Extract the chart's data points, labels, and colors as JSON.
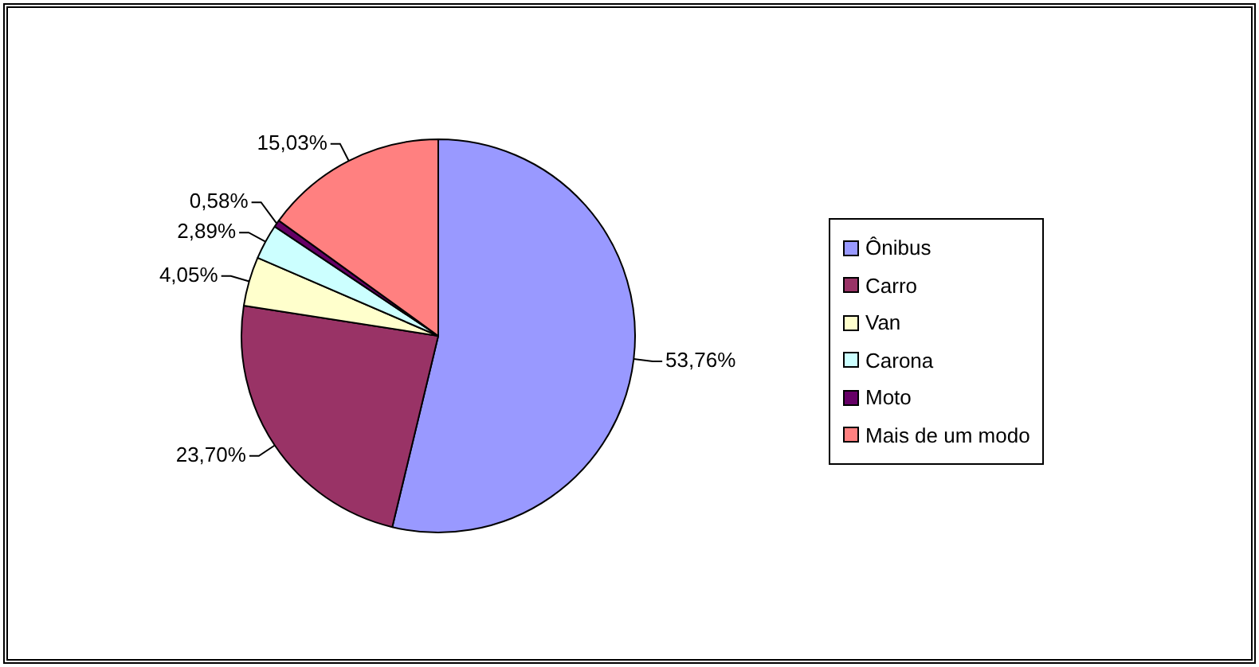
{
  "chart_data": {
    "type": "pie",
    "categories": [
      "Ônibus",
      "Carro",
      "Van",
      "Carona",
      "Moto",
      "Mais de um modo"
    ],
    "values": [
      53.76,
      23.7,
      4.05,
      2.89,
      0.58,
      15.03
    ],
    "colors": [
      "#9999ff",
      "#993366",
      "#ffffcc",
      "#ccffff",
      "#660066",
      "#ff8080"
    ],
    "value_labels": [
      "53,76%",
      "23,70%",
      "4,05%",
      "2,89%",
      "0,58%",
      "15,03%"
    ],
    "legend": "right"
  }
}
